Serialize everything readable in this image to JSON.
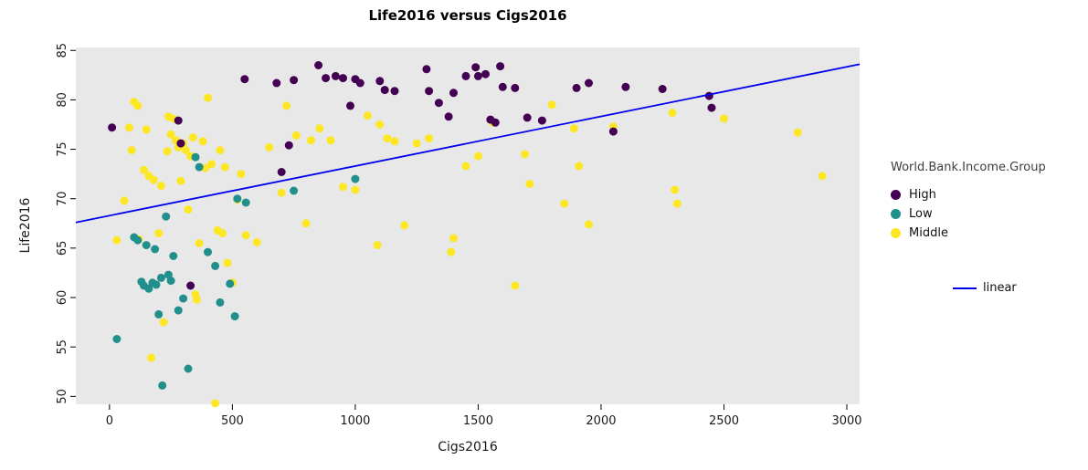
{
  "chart_data": {
    "type": "scatter",
    "title": "Life2016 versus Cigs2016",
    "xlabel": "Cigs2016",
    "ylabel": "Life2016",
    "xlim": [
      -137,
      3052
    ],
    "ylim": [
      49.2,
      85.3
    ],
    "x_ticks": [
      0,
      500,
      1000,
      1500,
      2000,
      2500,
      3000
    ],
    "y_ticks": [
      50,
      55,
      60,
      65,
      70,
      75,
      80,
      85
    ],
    "panel_bg": "#e8e8e8",
    "grid": false,
    "legend": {
      "title": "World.Bank.Income.Group",
      "position": "right",
      "line_label": "linear"
    },
    "series": [
      {
        "name": "High",
        "color": "#440154",
        "points": [
          [
            10,
            77.2
          ],
          [
            280,
            77.9
          ],
          [
            290,
            75.6
          ],
          [
            330,
            61.2
          ],
          [
            550,
            82.1
          ],
          [
            680,
            81.7
          ],
          [
            700,
            72.7
          ],
          [
            730,
            75.4
          ],
          [
            750,
            82.0
          ],
          [
            850,
            83.5
          ],
          [
            880,
            82.2
          ],
          [
            920,
            82.4
          ],
          [
            950,
            82.2
          ],
          [
            980,
            79.4
          ],
          [
            1000,
            82.1
          ],
          [
            1020,
            81.7
          ],
          [
            1100,
            81.9
          ],
          [
            1120,
            81.0
          ],
          [
            1160,
            80.9
          ],
          [
            1290,
            83.1
          ],
          [
            1300,
            80.9
          ],
          [
            1340,
            79.7
          ],
          [
            1380,
            78.3
          ],
          [
            1400,
            80.7
          ],
          [
            1450,
            82.4
          ],
          [
            1490,
            83.3
          ],
          [
            1500,
            82.4
          ],
          [
            1530,
            82.6
          ],
          [
            1550,
            78.0
          ],
          [
            1570,
            77.7
          ],
          [
            1590,
            83.4
          ],
          [
            1600,
            81.3
          ],
          [
            1650,
            81.2
          ],
          [
            1700,
            78.2
          ],
          [
            1760,
            77.9
          ],
          [
            1900,
            81.2
          ],
          [
            1950,
            81.7
          ],
          [
            2050,
            76.8
          ],
          [
            2100,
            81.3
          ],
          [
            2250,
            81.1
          ],
          [
            2440,
            80.4
          ],
          [
            2450,
            79.2
          ]
        ]
      },
      {
        "name": "Low",
        "color": "#21908c",
        "points": [
          [
            30,
            55.8
          ],
          [
            100,
            66.1
          ],
          [
            115,
            65.8
          ],
          [
            130,
            61.6
          ],
          [
            140,
            61.2
          ],
          [
            150,
            65.3
          ],
          [
            160,
            60.9
          ],
          [
            175,
            61.5
          ],
          [
            185,
            64.9
          ],
          [
            190,
            61.3
          ],
          [
            200,
            58.3
          ],
          [
            210,
            62.0
          ],
          [
            215,
            51.1
          ],
          [
            230,
            68.2
          ],
          [
            240,
            62.3
          ],
          [
            250,
            61.7
          ],
          [
            260,
            64.2
          ],
          [
            280,
            58.7
          ],
          [
            300,
            59.9
          ],
          [
            320,
            52.8
          ],
          [
            350,
            74.2
          ],
          [
            365,
            73.2
          ],
          [
            400,
            64.6
          ],
          [
            430,
            63.2
          ],
          [
            450,
            59.5
          ],
          [
            490,
            61.4
          ],
          [
            510,
            58.1
          ],
          [
            520,
            70.0
          ],
          [
            555,
            69.6
          ],
          [
            750,
            70.8
          ],
          [
            1000,
            72.0
          ]
        ]
      },
      {
        "name": "Middle",
        "color": "#fde725",
        "points": [
          [
            30,
            65.8
          ],
          [
            60,
            69.8
          ],
          [
            80,
            77.2
          ],
          [
            90,
            74.9
          ],
          [
            100,
            79.8
          ],
          [
            115,
            79.4
          ],
          [
            120,
            65.9
          ],
          [
            140,
            72.9
          ],
          [
            150,
            77.0
          ],
          [
            160,
            72.3
          ],
          [
            170,
            53.9
          ],
          [
            180,
            71.9
          ],
          [
            200,
            66.5
          ],
          [
            210,
            71.3
          ],
          [
            220,
            57.5
          ],
          [
            235,
            74.8
          ],
          [
            240,
            78.3
          ],
          [
            250,
            76.5
          ],
          [
            260,
            78.1
          ],
          [
            270,
            75.9
          ],
          [
            280,
            75.2
          ],
          [
            290,
            71.8
          ],
          [
            300,
            75.6
          ],
          [
            310,
            74.9
          ],
          [
            320,
            68.9
          ],
          [
            330,
            74.3
          ],
          [
            340,
            76.2
          ],
          [
            350,
            60.3
          ],
          [
            355,
            59.8
          ],
          [
            365,
            65.5
          ],
          [
            380,
            75.8
          ],
          [
            390,
            73.1
          ],
          [
            400,
            80.2
          ],
          [
            415,
            73.5
          ],
          [
            430,
            49.3
          ],
          [
            440,
            66.8
          ],
          [
            450,
            74.9
          ],
          [
            460,
            66.5
          ],
          [
            470,
            73.2
          ],
          [
            480,
            63.5
          ],
          [
            500,
            61.5
          ],
          [
            520,
            69.9
          ],
          [
            535,
            72.5
          ],
          [
            555,
            66.3
          ],
          [
            600,
            65.6
          ],
          [
            650,
            75.2
          ],
          [
            700,
            70.6
          ],
          [
            720,
            79.4
          ],
          [
            760,
            76.4
          ],
          [
            800,
            67.5
          ],
          [
            820,
            75.9
          ],
          [
            855,
            77.1
          ],
          [
            900,
            75.9
          ],
          [
            950,
            71.2
          ],
          [
            1000,
            70.9
          ],
          [
            1050,
            78.4
          ],
          [
            1090,
            65.3
          ],
          [
            1100,
            77.5
          ],
          [
            1130,
            76.1
          ],
          [
            1160,
            75.8
          ],
          [
            1200,
            67.3
          ],
          [
            1250,
            75.6
          ],
          [
            1300,
            76.1
          ],
          [
            1390,
            64.6
          ],
          [
            1400,
            66.0
          ],
          [
            1450,
            73.3
          ],
          [
            1500,
            74.3
          ],
          [
            1560,
            77.7
          ],
          [
            1650,
            61.2
          ],
          [
            1690,
            74.5
          ],
          [
            1710,
            71.5
          ],
          [
            1800,
            79.5
          ],
          [
            1850,
            69.5
          ],
          [
            1890,
            77.1
          ],
          [
            1910,
            73.3
          ],
          [
            1950,
            67.4
          ],
          [
            2050,
            77.3
          ],
          [
            2290,
            78.7
          ],
          [
            2300,
            70.9
          ],
          [
            2310,
            69.5
          ],
          [
            2500,
            78.1
          ],
          [
            2800,
            76.7
          ],
          [
            2900,
            72.3
          ]
        ]
      }
    ],
    "regression_line": {
      "name": "linear",
      "color": "#0000ee",
      "x": [
        -137,
        3052
      ],
      "y": [
        67.6,
        83.6
      ]
    }
  }
}
